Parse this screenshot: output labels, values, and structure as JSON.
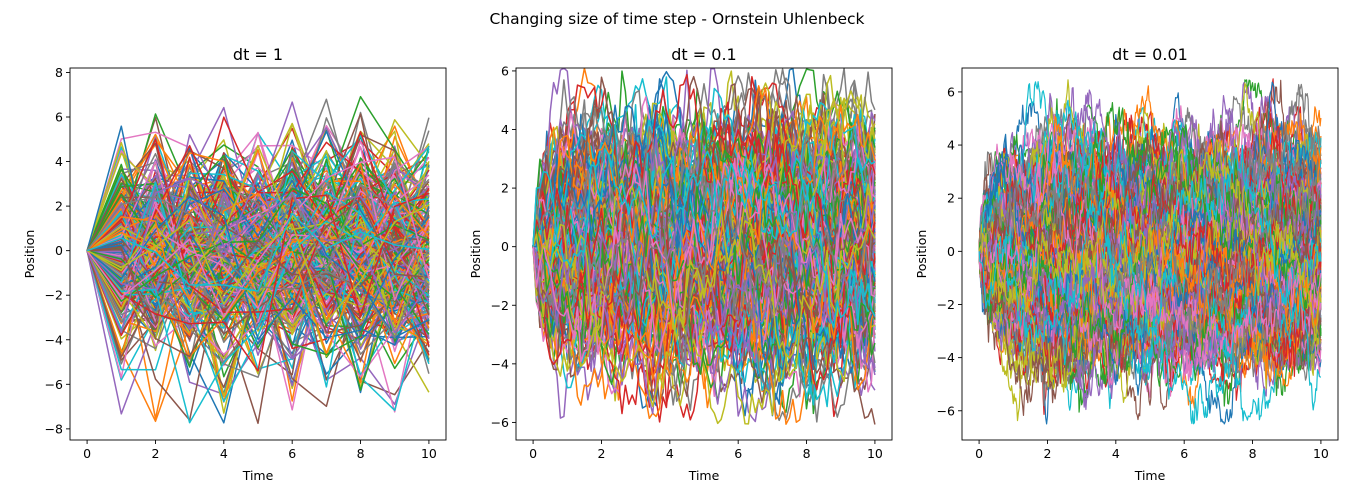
{
  "figure": {
    "suptitle": "Changing size of time step - Ornstein Uhlenbeck"
  },
  "chart_data": [
    {
      "type": "line",
      "title": "dt = 1",
      "xlabel": "Time",
      "ylabel": "Position",
      "dt": 1,
      "x_range": [
        0,
        10
      ],
      "xlim": [
        -0.5,
        10.5
      ],
      "ylim": [
        -8.5,
        8.2
      ],
      "xticks": [
        0,
        2,
        4,
        6,
        8,
        10
      ],
      "yticks": [
        -8,
        -6,
        -4,
        -2,
        0,
        2,
        4,
        6,
        8
      ],
      "start_value": 0,
      "observed_extremes": {
        "max": 7.3,
        "min": -7.8
      },
      "n_series_approx": 300,
      "legend": false,
      "grid": false
    },
    {
      "type": "line",
      "title": "dt = 0.1",
      "xlabel": "Time",
      "ylabel": "Position",
      "dt": 0.1,
      "x_range": [
        0,
        10
      ],
      "xlim": [
        -0.5,
        10.5
      ],
      "ylim": [
        -6.6,
        6.1
      ],
      "xticks": [
        0,
        2,
        4,
        6,
        8,
        10
      ],
      "yticks": [
        -6,
        -4,
        -2,
        0,
        2,
        4,
        6
      ],
      "start_value": 0,
      "observed_extremes": {
        "max": 5.5,
        "min": -6.1
      },
      "n_series_approx": 300,
      "legend": false,
      "grid": false
    },
    {
      "type": "line",
      "title": "dt = 0.01",
      "xlabel": "Time",
      "ylabel": "Position",
      "dt": 0.01,
      "x_range": [
        0,
        10
      ],
      "xlim": [
        -0.5,
        10.5
      ],
      "ylim": [
        -7.1,
        6.9
      ],
      "xticks": [
        0,
        2,
        4,
        6,
        8,
        10
      ],
      "yticks": [
        -6,
        -4,
        -2,
        0,
        2,
        4,
        6
      ],
      "start_value": 0,
      "observed_extremes": {
        "max": 6.2,
        "min": -6.5
      },
      "n_series_approx": 300,
      "legend": false,
      "grid": false
    }
  ],
  "colors": [
    "#1f77b4",
    "#ff7f0e",
    "#2ca02c",
    "#d62728",
    "#9467bd",
    "#8c564b",
    "#e377c2",
    "#7f7f7f",
    "#bcbd22",
    "#17becf"
  ]
}
